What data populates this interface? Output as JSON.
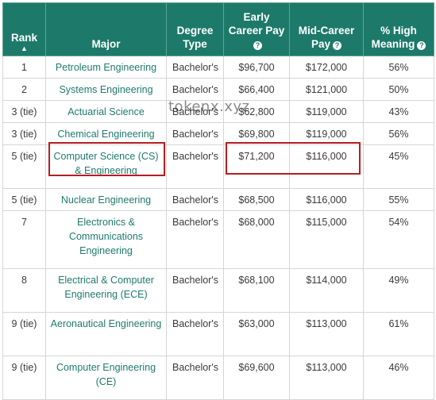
{
  "headers": {
    "rank": "Rank",
    "major": "Major",
    "degree_type": "Degree Type",
    "early_pay": "Early Career Pay",
    "mid_pay": "Mid-Career Pay",
    "meaning": "% High Meaning"
  },
  "icons": {
    "sort": "sort-ascending-icon",
    "info": "info-icon"
  },
  "watermark": "tokenx.xyz",
  "rows": [
    {
      "rank": "1",
      "major": "Petroleum Engineering",
      "type": "Bachelor's",
      "early": "$96,700",
      "mid": "$172,000",
      "meaning": "56%"
    },
    {
      "rank": "2",
      "major": "Systems Engineering",
      "type": "Bachelor's",
      "early": "$66,400",
      "mid": "$121,000",
      "meaning": "50%"
    },
    {
      "rank": "3 (tie)",
      "major": "Actuarial Science",
      "type": "Bachelor's",
      "early": "$62,800",
      "mid": "$119,000",
      "meaning": "43%"
    },
    {
      "rank": "3 (tie)",
      "major": "Chemical Engineering",
      "type": "Bachelor's",
      "early": "$69,800",
      "mid": "$119,000",
      "meaning": "56%"
    },
    {
      "rank": "5 (tie)",
      "major": "Computer Science (CS) & Engineering",
      "type": "Bachelor's",
      "early": "$71,200",
      "mid": "$116,000",
      "meaning": "45%"
    },
    {
      "rank": "5 (tie)",
      "major": "Nuclear Engineering",
      "type": "Bachelor's",
      "early": "$68,500",
      "mid": "$116,000",
      "meaning": "55%"
    },
    {
      "rank": "7",
      "major": "Electronics & Communications Engineering",
      "type": "Bachelor's",
      "early": "$68,000",
      "mid": "$115,000",
      "meaning": "54%"
    },
    {
      "rank": "8",
      "major": "Electrical & Computer Engineering (ECE)",
      "type": "Bachelor's",
      "early": "$68,100",
      "mid": "$114,000",
      "meaning": "49%"
    },
    {
      "rank": "9 (tie)",
      "major": "Aeronautical Engineering",
      "type": "Bachelor's",
      "early": "$63,000",
      "mid": "$113,000",
      "meaning": "61%"
    },
    {
      "rank": "9 (tie)",
      "major": "Computer Engineering (CE)",
      "type": "Bachelor's",
      "early": "$69,600",
      "mid": "$113,000",
      "meaning": "46%"
    }
  ]
}
